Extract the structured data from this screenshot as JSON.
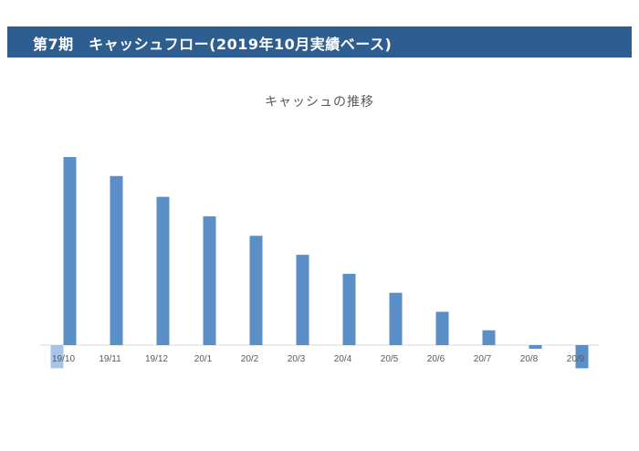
{
  "header": {
    "title": "第7期　キャッシュフロー(2019年10月実績ベース)"
  },
  "colors": {
    "header_bg": "#2e5d8f",
    "bar_primary": "#5b8fc7",
    "bar_secondary": "#a9c4e6",
    "axis": "#d9d9d9"
  },
  "chart_data": {
    "type": "bar",
    "title": "キャッシュの推移",
    "xlabel": "",
    "ylabel": "",
    "categories": [
      "19/10",
      "19/11",
      "19/12",
      "20/1",
      "20/2",
      "20/3",
      "20/4",
      "20/5",
      "20/6",
      "20/7",
      "20/8",
      "20/9"
    ],
    "series": [
      {
        "values": [
          -50,
          0,
          0,
          0,
          0,
          0,
          0,
          0,
          0,
          0,
          0,
          0
        ]
      },
      {
        "values": [
          406,
          365,
          320,
          278,
          236,
          195,
          154,
          113,
          72,
          32,
          -8,
          -50
        ]
      }
    ],
    "ylim": [
      -60,
      420
    ],
    "grid": false,
    "legend": "none"
  }
}
